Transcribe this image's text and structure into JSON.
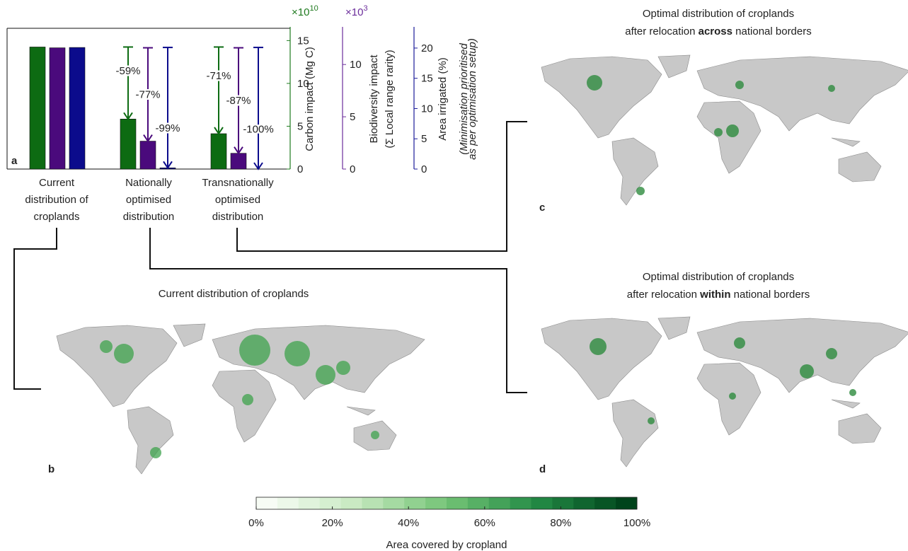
{
  "chart_data": {
    "type": "bar",
    "panel_label": "a",
    "categories": [
      "Current distribution of croplands",
      "Nationally optimised distribution",
      "Transnationally optimised distribution"
    ],
    "series": [
      {
        "name": "Carbon impact (Mg C)",
        "color": "#0d6b12",
        "axis_color": "#1f7a1f",
        "values": [
          14.25,
          5.84,
          4.13
        ],
        "change_labels": [
          null,
          "-59%",
          "-71%"
        ],
        "ylim": [
          0,
          16.6
        ],
        "yticks": [
          0,
          5,
          10,
          15
        ],
        "scale_label": {
          "base": "×10",
          "exponent": "10"
        }
      },
      {
        "name": "Biodiversity impact",
        "name_line2": "(Σ Local range rarity)",
        "color": "#4a0a7c",
        "axis_color": "#6b2d9b",
        "values": [
          11.6,
          2.67,
          1.51
        ],
        "change_labels": [
          null,
          "-77%",
          "-87%"
        ],
        "ylim": [
          0,
          13.6
        ],
        "yticks": [
          0,
          5,
          10
        ],
        "scale_label": {
          "base": "×10",
          "exponent": "3"
        }
      },
      {
        "name": "Area irrigated (%)",
        "color": "#0b0b8c",
        "axis_color": "#1a1a9a",
        "values": [
          20.1,
          0.2,
          0
        ],
        "change_labels": [
          null,
          "-99%",
          "-100%"
        ],
        "ylim": [
          0,
          23.5
        ],
        "yticks": [
          0,
          5,
          10,
          15,
          20
        ]
      }
    ],
    "note": [
      "(Minimisation prioritised",
      "as per optimisation setup)"
    ]
  },
  "maps": [
    {
      "panel_label": "b",
      "title": "Current distribution of croplands"
    },
    {
      "panel_label": "c",
      "title": "Optimal distribution of croplands",
      "subtitle_parts": [
        "after relocation ",
        "across",
        " national borders"
      ]
    },
    {
      "panel_label": "d",
      "title": "Optimal distribution of croplands",
      "subtitle_parts": [
        "after relocation ",
        "within",
        " national borders"
      ]
    }
  ],
  "colorbar": {
    "label": "Area covered by cropland",
    "vlim": [
      0,
      100
    ],
    "ticks": [
      {
        "value": 0,
        "label": "0%"
      },
      {
        "value": 20,
        "label": "20%"
      },
      {
        "value": 40,
        "label": "40%"
      },
      {
        "value": 60,
        "label": "60%"
      },
      {
        "value": 80,
        "label": "80%"
      },
      {
        "value": 100,
        "label": "100%"
      }
    ],
    "colors": [
      "#f7fcf5",
      "#c7e9c0",
      "#74c476",
      "#238b45",
      "#00441b"
    ]
  }
}
